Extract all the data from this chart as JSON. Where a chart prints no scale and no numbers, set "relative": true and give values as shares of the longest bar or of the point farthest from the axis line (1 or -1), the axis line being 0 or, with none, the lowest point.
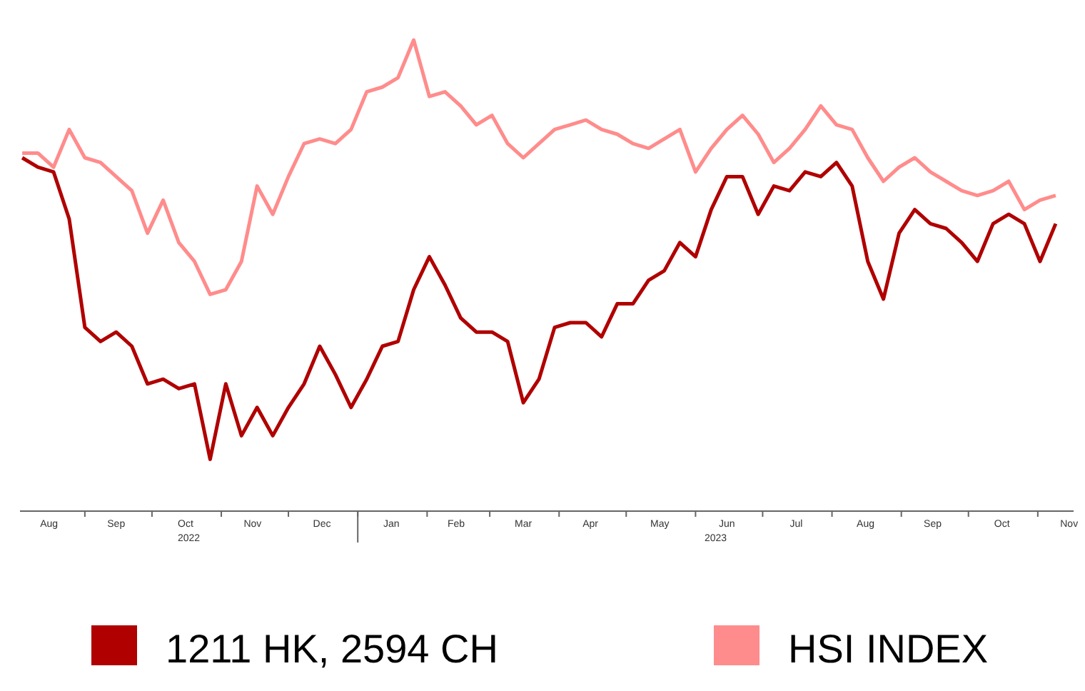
{
  "chart_data": {
    "type": "line",
    "relative": true,
    "legend": "bottom",
    "x": [
      "2022-08-04",
      "2022-08-11",
      "2022-08-18",
      "2022-08-25",
      "2022-09-01",
      "2022-09-08",
      "2022-09-15",
      "2022-09-22",
      "2022-09-29",
      "2022-10-06",
      "2022-10-13",
      "2022-10-20",
      "2022-10-27",
      "2022-11-03",
      "2022-11-10",
      "2022-11-17",
      "2022-11-24",
      "2022-12-01",
      "2022-12-08",
      "2022-12-15",
      "2022-12-22",
      "2022-12-29",
      "2023-01-05",
      "2023-01-12",
      "2023-01-19",
      "2023-01-26",
      "2023-02-02",
      "2023-02-09",
      "2023-02-16",
      "2023-02-23",
      "2023-03-02",
      "2023-03-09",
      "2023-03-16",
      "2023-03-23",
      "2023-03-30",
      "2023-04-06",
      "2023-04-13",
      "2023-04-20",
      "2023-04-27",
      "2023-05-04",
      "2023-05-11",
      "2023-05-18",
      "2023-05-25",
      "2023-06-01",
      "2023-06-08",
      "2023-06-15",
      "2023-06-22",
      "2023-06-29",
      "2023-07-06",
      "2023-07-13",
      "2023-07-20",
      "2023-07-27",
      "2023-08-03",
      "2023-08-10",
      "2023-08-17",
      "2023-08-24",
      "2023-08-31",
      "2023-09-07",
      "2023-09-14",
      "2023-09-21",
      "2023-09-28",
      "2023-10-05",
      "2023-10-12",
      "2023-10-19",
      "2023-10-26",
      "2023-11-02",
      "2023-11-09"
    ],
    "xlim": [
      "2022-08-03",
      "2023-11-17"
    ],
    "xticks": [
      {
        "value": "2022-08-16",
        "label": "Aug"
      },
      {
        "value": "2022-09-01",
        "label": null
      },
      {
        "value": "2022-09-15",
        "label": "Sep"
      },
      {
        "value": "2022-10-01",
        "label": null
      },
      {
        "value": "2022-10-16",
        "label": "Oct"
      },
      {
        "value": "2022-11-01",
        "label": null
      },
      {
        "value": "2022-11-15",
        "label": "Nov"
      },
      {
        "value": "2022-12-01",
        "label": null
      },
      {
        "value": "2022-12-16",
        "label": "Dec"
      },
      {
        "value": "2023-01-01",
        "label": null
      },
      {
        "value": "2023-01-16",
        "label": "Jan"
      },
      {
        "value": "2023-02-01",
        "label": null
      },
      {
        "value": "2023-02-14",
        "label": "Feb"
      },
      {
        "value": "2023-03-01",
        "label": null
      },
      {
        "value": "2023-03-16",
        "label": "Mar"
      },
      {
        "value": "2023-04-01",
        "label": null
      },
      {
        "value": "2023-04-15",
        "label": "Apr"
      },
      {
        "value": "2023-05-01",
        "label": null
      },
      {
        "value": "2023-05-16",
        "label": "May"
      },
      {
        "value": "2023-06-01",
        "label": null
      },
      {
        "value": "2023-06-15",
        "label": "Jun"
      },
      {
        "value": "2023-07-01",
        "label": null
      },
      {
        "value": "2023-07-16",
        "label": "Jul"
      },
      {
        "value": "2023-08-01",
        "label": null
      },
      {
        "value": "2023-08-16",
        "label": "Aug"
      },
      {
        "value": "2023-09-01",
        "label": null
      },
      {
        "value": "2023-09-15",
        "label": "Sep"
      },
      {
        "value": "2023-10-01",
        "label": null
      },
      {
        "value": "2023-10-16",
        "label": "Oct"
      },
      {
        "value": "2023-11-01",
        "label": null
      },
      {
        "value": "2023-11-15",
        "label": "Nov"
      }
    ],
    "annotations": [
      "2022",
      "2023"
    ],
    "series": [
      {
        "name": "1211 HK, 2594 CH",
        "color": "#b00000",
        "values": [
          0.75,
          0.73,
          0.72,
          0.62,
          0.39,
          0.36,
          0.38,
          0.35,
          0.27,
          0.28,
          0.26,
          0.27,
          0.11,
          0.27,
          0.16,
          0.22,
          0.16,
          0.22,
          0.27,
          0.35,
          0.29,
          0.22,
          0.28,
          0.35,
          0.36,
          0.47,
          0.54,
          0.48,
          0.41,
          0.38,
          0.38,
          0.36,
          0.23,
          0.28,
          0.39,
          0.4,
          0.4,
          0.37,
          0.44,
          0.44,
          0.49,
          0.51,
          0.57,
          0.54,
          0.64,
          0.71,
          0.71,
          0.63,
          0.69,
          0.68,
          0.72,
          0.71,
          0.74,
          0.69,
          0.53,
          0.45,
          0.59,
          0.64,
          0.61,
          0.6,
          0.57,
          0.53,
          0.61,
          0.63,
          0.61,
          0.53,
          0.61
        ]
      },
      {
        "name": "HSI INDEX",
        "color": "#ff8c8c",
        "values": [
          0.76,
          0.76,
          0.73,
          0.81,
          0.75,
          0.74,
          0.71,
          0.68,
          0.59,
          0.66,
          0.57,
          0.53,
          0.46,
          0.47,
          0.53,
          0.69,
          0.63,
          0.71,
          0.78,
          0.79,
          0.78,
          0.81,
          0.89,
          0.9,
          0.92,
          1.0,
          0.88,
          0.89,
          0.86,
          0.82,
          0.84,
          0.78,
          0.75,
          0.78,
          0.81,
          0.82,
          0.83,
          0.81,
          0.8,
          0.78,
          0.77,
          0.79,
          0.81,
          0.72,
          0.77,
          0.81,
          0.84,
          0.8,
          0.74,
          0.77,
          0.81,
          0.86,
          0.82,
          0.81,
          0.75,
          0.7,
          0.73,
          0.75,
          0.72,
          0.7,
          0.68,
          0.67,
          0.68,
          0.7,
          0.64,
          0.66,
          0.67
        ]
      }
    ]
  }
}
